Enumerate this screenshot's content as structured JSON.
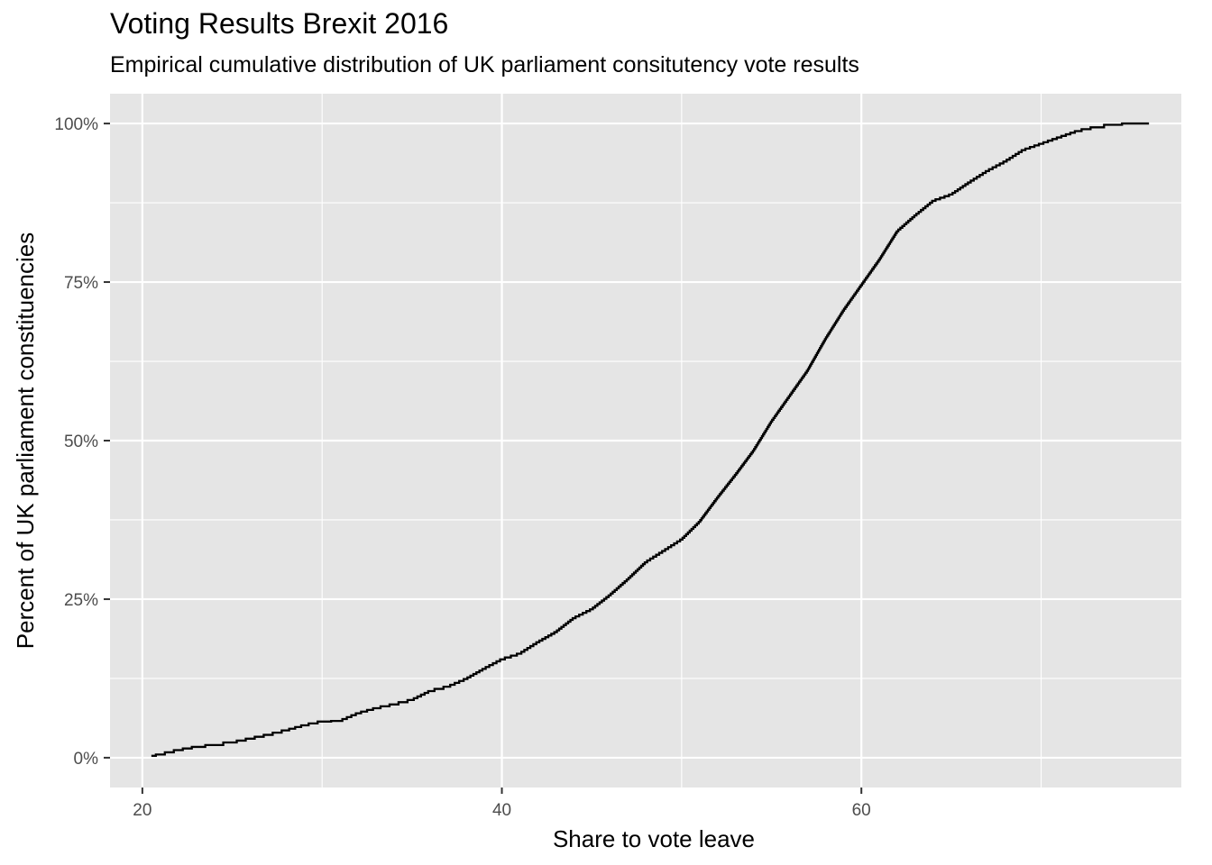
{
  "chart_data": {
    "type": "line",
    "step": true,
    "title": "Voting Results Brexit 2016",
    "subtitle": "Empirical cumulative distribution of UK parliament consitutency vote results",
    "xlabel": "Share to vote leave",
    "ylabel": "Percent of UK parliament constituencies",
    "xlim": [
      18.2,
      77.8
    ],
    "ylim": [
      -4.7,
      104.7
    ],
    "x_ticks": [
      20,
      40,
      60
    ],
    "x_tick_labels": [
      "20",
      "40",
      "60"
    ],
    "x_minor_ticks": [
      30,
      50,
      70
    ],
    "y_ticks": [
      0,
      25,
      50,
      75,
      100
    ],
    "y_tick_labels": [
      "0%",
      "25%",
      "50%",
      "75%",
      "100%"
    ],
    "y_minor_ticks": [
      12.5,
      37.5,
      62.5,
      87.5
    ],
    "grid": true,
    "legend": "none",
    "colors": {
      "panel": "#e5e5e5",
      "grid": "#ffffff",
      "line": "#000000",
      "tick_text": "#4d4d4d"
    },
    "series": [
      {
        "x": [
          20.5,
          21.0,
          22.0,
          23.0,
          24.0,
          25.0,
          26.0,
          27.0,
          28.0,
          29.0,
          30.0,
          31.0,
          32.0,
          33.0,
          34.0,
          35.0,
          36.0,
          37.0,
          38.0,
          39.0,
          40.0,
          41.0,
          42.0,
          43.0,
          44.0,
          45.0,
          46.0,
          47.0,
          48.0,
          49.0,
          50.0,
          51.0,
          52.0,
          53.0,
          54.0,
          55.0,
          56.0,
          57.0,
          58.0,
          59.0,
          60.0,
          61.0,
          62.0,
          63.0,
          64.0,
          65.0,
          66.0,
          67.0,
          68.0,
          69.0,
          70.0,
          71.0,
          72.0,
          73.0,
          74.0,
          75.0,
          76.0
        ],
        "y": [
          0.3,
          0.5,
          1.2,
          1.7,
          2.0,
          2.4,
          3.0,
          3.6,
          4.3,
          5.1,
          5.7,
          5.8,
          7.0,
          7.8,
          8.4,
          9.1,
          10.5,
          11.2,
          12.4,
          14.0,
          15.5,
          16.4,
          18.2,
          19.8,
          22.0,
          23.4,
          25.6,
          28.1,
          30.8,
          32.6,
          34.4,
          37.2,
          41.0,
          44.6,
          48.4,
          53.0,
          57.0,
          61.0,
          66.0,
          70.5,
          74.5,
          78.5,
          83.0,
          85.5,
          87.8,
          88.8,
          90.7,
          92.5,
          94.0,
          95.8,
          96.8,
          97.8,
          98.8,
          99.4,
          99.8,
          100.0,
          100.0
        ]
      }
    ]
  }
}
